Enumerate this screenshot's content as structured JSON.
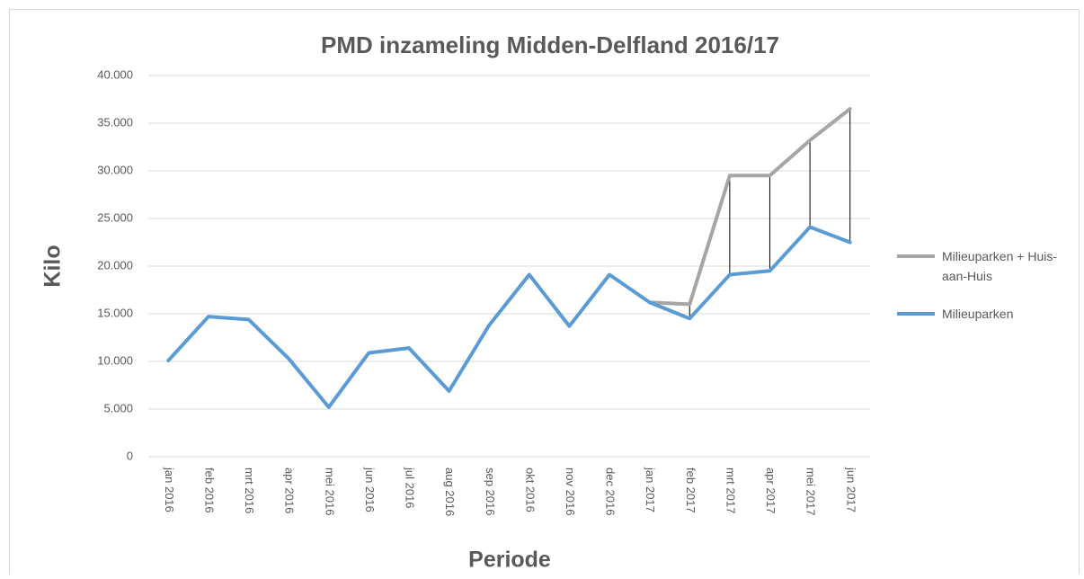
{
  "chart_data": {
    "type": "line",
    "title": "PMD inzameling  Midden-Delfland  2016/17",
    "x_label": "Periode",
    "y_label": "Kilo",
    "categories": [
      "jan 2016",
      "feb 2016",
      "mrt 2016",
      "apr 2016",
      "mei 2016",
      "jun 2016",
      "jul 2016",
      "aug 2016",
      "sep 2016",
      "okt 2016",
      "nov 2016",
      "dec 2016",
      "jan 2017",
      "feb 2017",
      "mrt 2017",
      "apr 2017",
      "mei 2017",
      "jun 2017"
    ],
    "series": [
      {
        "name": "Milieuparken + Huis-aan-Huis",
        "color": "#a5a5a5",
        "values": [
          null,
          null,
          null,
          null,
          null,
          null,
          null,
          null,
          null,
          null,
          null,
          null,
          16200,
          16000,
          29500,
          29500,
          33200,
          36500
        ]
      },
      {
        "name": "Milieuparken",
        "color": "#5b9bd5",
        "values": [
          10100,
          14700,
          14400,
          10300,
          5200,
          10900,
          11400,
          6900,
          13800,
          19100,
          13700,
          19100,
          16200,
          14500,
          19100,
          19500,
          24100,
          22500
        ]
      }
    ],
    "ylim": [
      0,
      40000
    ],
    "yticks": [
      0,
      {
        "value": 5000,
        "label": "5.000"
      },
      {
        "value": 10000,
        "label": "10.000"
      },
      {
        "value": 15000,
        "label": "15.000"
      },
      {
        "value": 20000,
        "label": "20.000"
      },
      {
        "value": 25000,
        "label": "25.000"
      },
      {
        "value": 30000,
        "label": "30.000"
      },
      {
        "value": 35000,
        "label": "35.000"
      },
      {
        "value": 40000,
        "label": "40.000"
      }
    ],
    "grid": true,
    "drop_lines": true,
    "legend_position": "right"
  }
}
